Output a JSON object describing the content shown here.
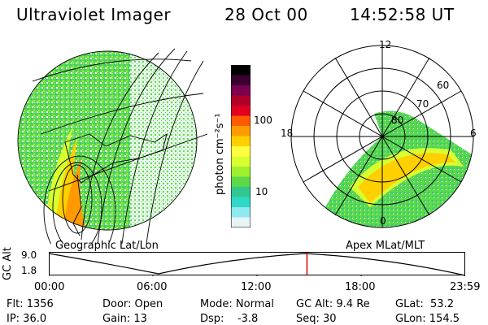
{
  "header": {
    "title": "Ultraviolet Imager",
    "date": "28 Oct 00",
    "time": "14:52:58 UT"
  },
  "panels": {
    "left_label": "Geographic Lat/Lon",
    "right_label": "Apex MLat/MLT"
  },
  "colorbar": {
    "unit_label": "photon cm⁻²s⁻¹",
    "tick_labels": [
      "100",
      "10"
    ],
    "colors": [
      "#000000",
      "#3a0030",
      "#7a0050",
      "#b0002a",
      "#e00020",
      "#ff5a00",
      "#ff9a00",
      "#ffd000",
      "#ffff40",
      "#d8ff30",
      "#a0f030",
      "#5cd848",
      "#30c890",
      "#30d8c8",
      "#90e8f0",
      "#e8f4f8"
    ]
  },
  "polar": {
    "mlt_labels": [
      "12",
      "18",
      "6",
      "0"
    ],
    "lat_labels": [
      "60",
      "70",
      "80"
    ]
  },
  "timeline": {
    "y_axis_label": "GC Alt",
    "y_ticks": [
      "9.0",
      "1.8"
    ],
    "x_ticks": [
      "00:00",
      "06:00",
      "12:00",
      "18:00",
      "23:59"
    ],
    "current_marker_fraction": 0.62,
    "marker_color": "#e00000"
  },
  "info": {
    "flt": "Flt: 1356",
    "ip": "IP: 36.0",
    "door": "Door: Open",
    "gain": "Gain: 13",
    "mode": "Mode: Normal",
    "dsp": "Dsp:    -3.8",
    "gc_alt": "GC Alt: 9.4 Re",
    "seq": "Seq: 30",
    "glat": "GLat:  53.2",
    "glon": "GLon: 154.5"
  }
}
